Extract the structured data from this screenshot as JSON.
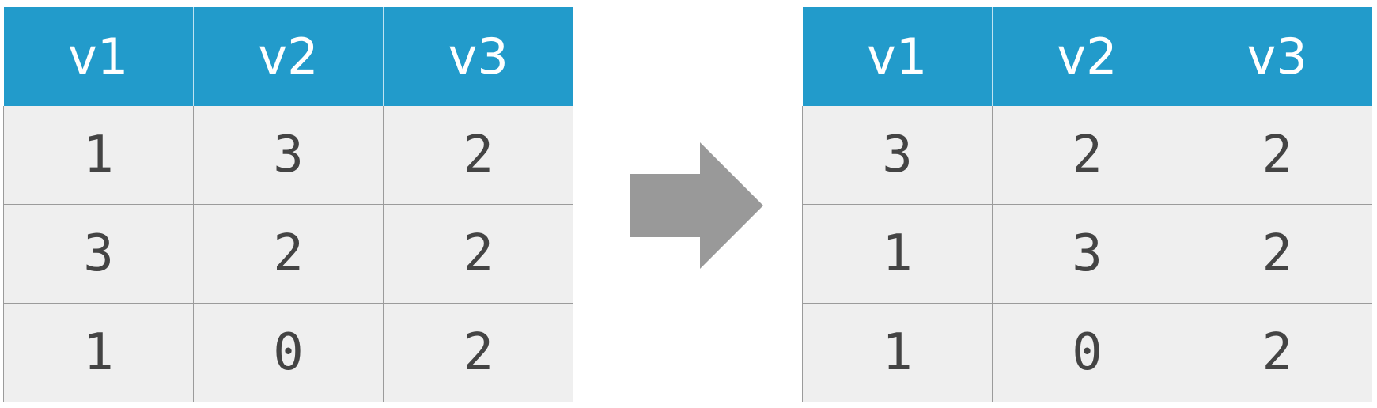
{
  "diagram": {
    "before": {
      "headers": [
        "v1",
        "v2",
        "v3"
      ],
      "rows": [
        [
          "1",
          "3",
          "2"
        ],
        [
          "3",
          "2",
          "2"
        ],
        [
          "1",
          "0",
          "2"
        ]
      ]
    },
    "after": {
      "headers": [
        "v1",
        "v2",
        "v3"
      ],
      "rows": [
        [
          "3",
          "2",
          "2"
        ],
        [
          "1",
          "3",
          "2"
        ],
        [
          "1",
          "0",
          "2"
        ]
      ]
    },
    "colors": {
      "header_bg": "#229bcb",
      "header_text": "#ffffff",
      "cell_bg": "#efefef",
      "cell_text": "#444444",
      "arrow": "#999999"
    }
  }
}
